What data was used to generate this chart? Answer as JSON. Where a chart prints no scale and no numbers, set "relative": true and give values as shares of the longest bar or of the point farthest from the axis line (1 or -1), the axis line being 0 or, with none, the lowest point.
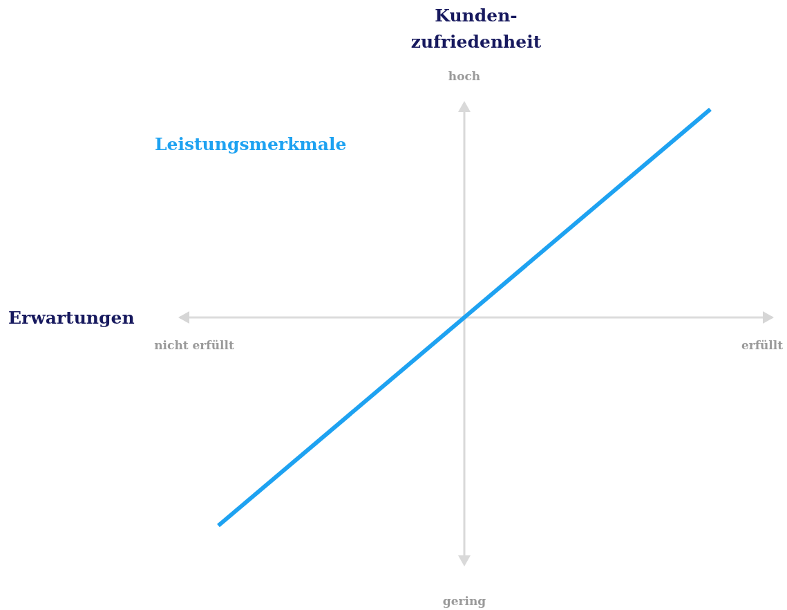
{
  "chart_data": {
    "type": "line",
    "relative": true,
    "xlabel": "Erwartungen",
    "ylabel": "Kunden-zufriedenheit",
    "categories": [
      null,
      null,
      null
    ],
    "series": [
      {
        "name": "Leistungsmerkmale",
        "color": "#1ea2f1",
        "values": [
          -1,
          0,
          1
        ]
      }
    ],
    "annotations": [
      "hoch",
      "gering",
      "nicht erfüllt",
      "erfüllt"
    ],
    "marker": "none",
    "legend": false
  }
}
